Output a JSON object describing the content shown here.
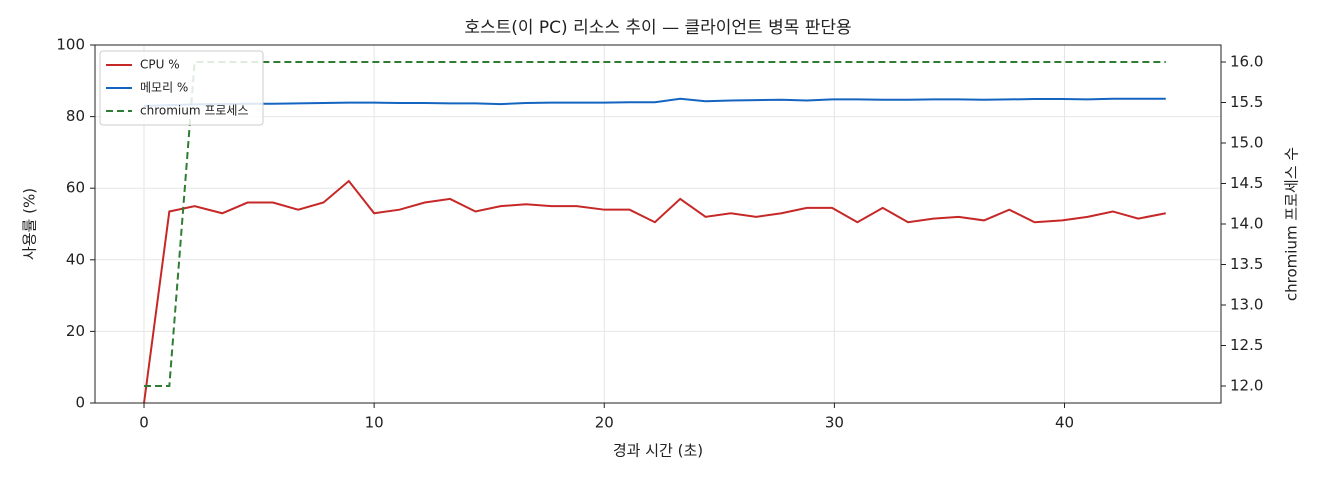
{
  "chart_data": {
    "type": "line",
    "title": "호스트(이 PC) 리소스 추이 — 클라이언트 병목 판단용",
    "xlabel": "경과 시간 (초)",
    "ylabel": "사용률 (%)",
    "y2label": "chromium 프로세스 수",
    "x": [
      0,
      1.1,
      2.2,
      3.4,
      4.5,
      5.6,
      6.7,
      7.8,
      8.9,
      10.0,
      11.1,
      12.2,
      13.3,
      14.4,
      15.5,
      16.6,
      17.7,
      18.8,
      20.0,
      21.1,
      22.2,
      23.3,
      24.4,
      25.5,
      26.6,
      27.7,
      28.8,
      29.9,
      31.0,
      32.1,
      33.2,
      34.3,
      35.4,
      36.5,
      37.6,
      38.7,
      39.9,
      41.0,
      42.1,
      43.2,
      44.4
    ],
    "series": [
      {
        "name": "CPU %",
        "color": "#c62828",
        "values": [
          0,
          53.5,
          55,
          53,
          56,
          56,
          54,
          56,
          62,
          53,
          54,
          56,
          57,
          53.5,
          55,
          55.5,
          55,
          55,
          54,
          54,
          50.5,
          57,
          52,
          53,
          52,
          53,
          54.5,
          54.5,
          50.5,
          54.5,
          50.5,
          51.5,
          52,
          51,
          54,
          50.5,
          51,
          52,
          53.5,
          51.5,
          53
        ]
      },
      {
        "name": "메모리 %",
        "color": "#1565c0",
        "values": [
          83,
          83.2,
          83.4,
          83.5,
          83.6,
          83.6,
          83.7,
          83.8,
          83.9,
          83.9,
          83.8,
          83.8,
          83.7,
          83.7,
          83.5,
          83.8,
          83.9,
          83.9,
          83.9,
          84.0,
          84.0,
          85.0,
          84.3,
          84.5,
          84.6,
          84.7,
          84.5,
          84.8,
          84.8,
          84.7,
          84.7,
          84.8,
          84.8,
          84.7,
          84.8,
          84.9,
          84.9,
          84.8,
          85.0,
          85.0,
          85.0
        ]
      },
      {
        "name": "chromium 프로세스",
        "color": "#2e7d32",
        "axis": "y2",
        "linestyle": "dashed",
        "values": [
          12,
          12,
          16,
          16,
          16,
          16,
          16,
          16,
          16,
          16,
          16,
          16,
          16,
          16,
          16,
          16,
          16,
          16,
          16,
          16,
          16,
          16,
          16,
          16,
          16,
          16,
          16,
          16,
          16,
          16,
          16,
          16,
          16,
          16,
          16,
          16,
          16,
          16,
          16,
          16,
          16
        ]
      }
    ],
    "xlim": [
      -2.13,
      46.8
    ],
    "xticks": [
      0,
      10,
      20,
      30,
      40
    ],
    "ylim": [
      0,
      100
    ],
    "yticks": [
      0,
      20,
      40,
      60,
      80,
      100
    ],
    "y2lim": [
      11.79,
      16.21
    ],
    "y2ticks": [
      {
        "value": 12,
        "label": "12.0"
      },
      {
        "value": 12.5,
        "label": "12.5"
      },
      {
        "value": 13,
        "label": "13.0"
      },
      {
        "value": 13.5,
        "label": "13.5"
      },
      {
        "value": 14,
        "label": "14.0"
      },
      {
        "value": 14.5,
        "label": "14.5"
      },
      {
        "value": 15,
        "label": "15.0"
      },
      {
        "value": 15.5,
        "label": "15.5"
      },
      {
        "value": 16,
        "label": "16.0"
      }
    ],
    "grid": true,
    "legend": "upper-left"
  }
}
